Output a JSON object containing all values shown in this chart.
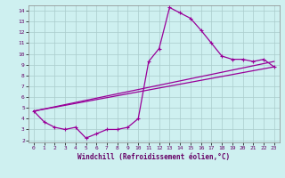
{
  "xlabel": "Windchill (Refroidissement éolien,°C)",
  "bg_color": "#cef0f0",
  "line_color": "#990099",
  "grid_color": "#aacccc",
  "xlim": [
    -0.5,
    23.5
  ],
  "ylim": [
    1.8,
    14.5
  ],
  "xticks": [
    0,
    1,
    2,
    3,
    4,
    5,
    6,
    7,
    8,
    9,
    10,
    11,
    12,
    13,
    14,
    15,
    16,
    17,
    18,
    19,
    20,
    21,
    22,
    23
  ],
  "yticks": [
    2,
    3,
    4,
    5,
    6,
    7,
    8,
    9,
    10,
    11,
    12,
    13,
    14
  ],
  "line1_x": [
    0,
    1,
    2,
    3,
    4,
    5,
    6,
    7,
    8,
    9,
    10,
    11,
    12,
    13,
    14,
    15,
    16,
    17,
    18,
    19,
    20,
    21,
    22,
    23
  ],
  "line1_y": [
    4.7,
    3.7,
    3.2,
    3.0,
    3.2,
    2.2,
    2.6,
    3.0,
    3.0,
    3.2,
    4.0,
    9.3,
    10.5,
    14.3,
    13.8,
    13.3,
    12.2,
    11.0,
    9.8,
    9.5,
    9.5,
    9.3,
    9.5,
    8.8
  ],
  "line2_x": [
    0,
    23
  ],
  "line2_y": [
    4.7,
    8.8
  ],
  "line3_x": [
    0,
    23
  ],
  "line3_y": [
    4.7,
    9.3
  ],
  "linewidth": 0.9,
  "markersize": 2.5
}
